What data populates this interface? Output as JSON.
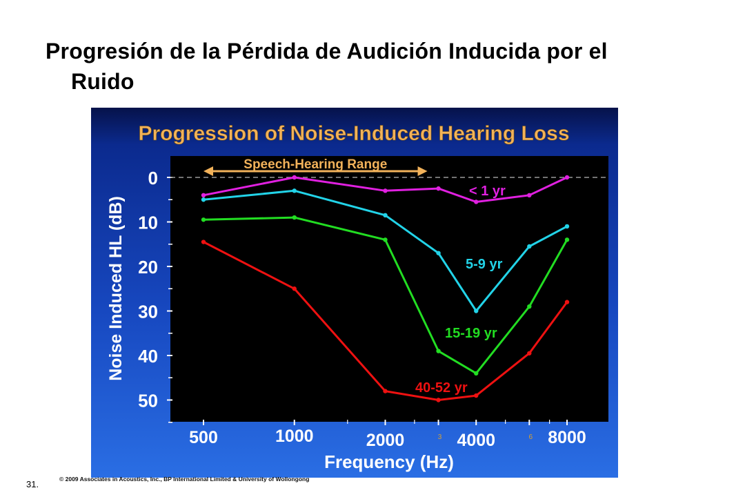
{
  "slide": {
    "title_line1": "Progresión de la Pérdida de Audición Inducida por el",
    "title_line2": "Ruido",
    "slide_number": "31.",
    "copyright": "© 2009 Associates in Acoustics, Inc., BP International Limited & University of Wollongong"
  },
  "colors": {
    "plot_background": "#000000",
    "panel_gradient_top": "#06124a",
    "panel_gradient_bottom": "#2a6ee4",
    "title_text": "#f2b25a",
    "axis_text": "#ffffff",
    "range_bar": "#f2b25a"
  },
  "chart_data": {
    "type": "line",
    "title": "Progression of Noise-Induced Hearing Loss",
    "xlabel": "Frequency (Hz)",
    "ylabel": "Noise Induced HL (dB)",
    "y_inverted": true,
    "ylim": [
      0,
      55
    ],
    "yticks": [
      0,
      10,
      20,
      30,
      40,
      50
    ],
    "xticks": [
      "500",
      "1000",
      "2000",
      "4000",
      "8000"
    ],
    "x_minor_labels": [
      "3",
      "6"
    ],
    "x": [
      500,
      1000,
      2000,
      3000,
      4000,
      6000,
      8000
    ],
    "reference_line": 0,
    "range_annotation": {
      "label": "Speech-Hearing Range",
      "from": 500,
      "to": 3000
    },
    "series": [
      {
        "name": "< 1 yr",
        "color": "#e020e0",
        "values": [
          4,
          0,
          3,
          2.5,
          5.5,
          4,
          0
        ]
      },
      {
        "name": "5-9 yr",
        "color": "#22d3e8",
        "values": [
          5,
          3,
          8.5,
          17,
          30,
          15.5,
          11
        ]
      },
      {
        "name": "15-19 yr",
        "color": "#22dd22",
        "values": [
          9.5,
          9,
          14,
          39,
          44,
          29,
          14
        ]
      },
      {
        "name": "40-52 yr",
        "color": "#ee1111",
        "values": [
          14.5,
          25,
          48,
          50,
          49,
          39.5,
          28
        ]
      }
    ]
  }
}
